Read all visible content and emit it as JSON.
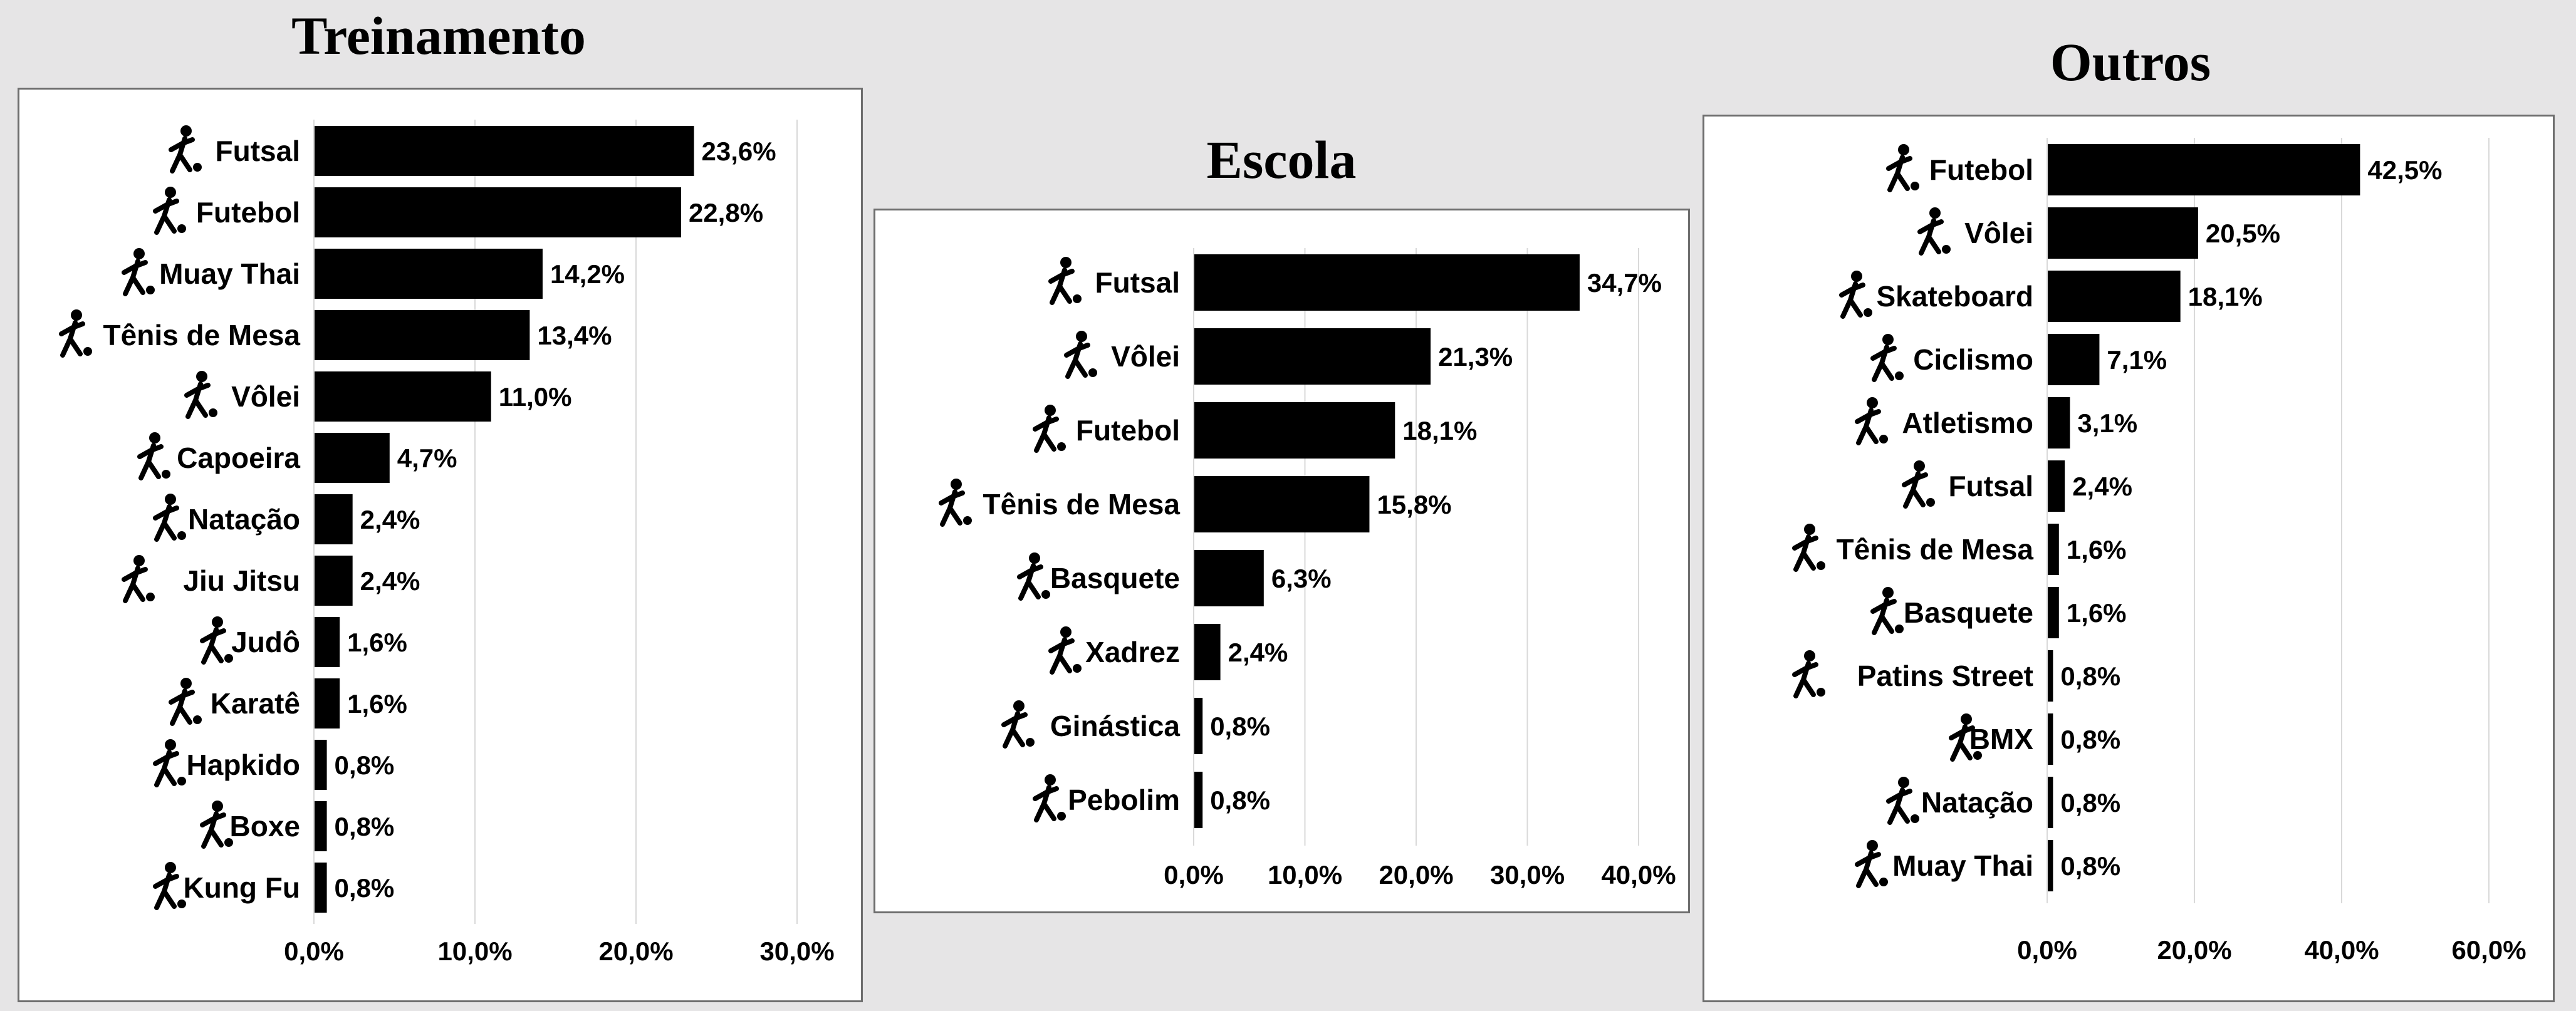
{
  "chart_data": [
    {
      "type": "bar",
      "orientation": "horizontal",
      "title": "Treinamento",
      "categories": [
        "Futsal",
        "Futebol",
        "Muay Thai",
        "Tênis de Mesa",
        "Vôlei",
        "Capoeira",
        "Natação",
        "Jiu Jitsu",
        "Judô",
        "Karatê",
        "Hapkido",
        "Boxe",
        "Kung Fu"
      ],
      "values": [
        23.6,
        22.8,
        14.2,
        13.4,
        11.0,
        4.7,
        2.4,
        2.4,
        1.6,
        1.6,
        0.8,
        0.8,
        0.8
      ],
      "value_labels": [
        "23,6%",
        "22,8%",
        "14,2%",
        "13,4%",
        "11,0%",
        "4,7%",
        "2,4%",
        "2,4%",
        "1,6%",
        "1,6%",
        "0,8%",
        "0,8%",
        "0,8%"
      ],
      "xlim": [
        0,
        30
      ],
      "xticks": [
        0,
        10,
        20,
        30
      ],
      "xtick_labels": [
        "0,0%",
        "10,0%",
        "20,0%",
        "30,0%"
      ],
      "grid": true,
      "bar_color": "#000000",
      "icons": [
        "futsal-player-icon",
        "soccer-kick-icon",
        "muay-thai-kick-icon",
        "table-tennis-icon",
        "volleyball-player-icon",
        "capoeira-icon",
        "swimmer-icon",
        "jiu-jitsu-icon",
        "judo-gi-icon",
        "karate-icon",
        "hapkido-kick-icon",
        "boxer-icon",
        "kung-fu-icon"
      ]
    },
    {
      "type": "bar",
      "orientation": "horizontal",
      "title": "Escola",
      "categories": [
        "Futsal",
        "Vôlei",
        "Futebol",
        "Tênis de Mesa",
        "Basquete",
        "Xadrez",
        "Ginástica",
        "Pebolim"
      ],
      "values": [
        34.7,
        21.3,
        18.1,
        15.8,
        6.3,
        2.4,
        0.8,
        0.8
      ],
      "value_labels": [
        "34,7%",
        "21,3%",
        "18,1%",
        "15,8%",
        "6,3%",
        "2,4%",
        "0,8%",
        "0,8%"
      ],
      "xlim": [
        0,
        40
      ],
      "xticks": [
        0,
        10,
        20,
        30,
        40
      ],
      "xtick_labels": [
        "0,0%",
        "10,0%",
        "20,0%",
        "30,0%",
        "40,0%"
      ],
      "grid": true,
      "bar_color": "#000000",
      "icons": [
        "futsal-player-icon",
        "volleyball-player-icon",
        "soccer-kick-icon",
        "table-tennis-icon",
        "basketball-player-icon",
        "chess-knight-icon",
        "gymnast-icon",
        "foosball-icon"
      ]
    },
    {
      "type": "bar",
      "orientation": "horizontal",
      "title": "Outros",
      "categories": [
        "Futebol",
        "Vôlei",
        "Skateboard",
        "Ciclismo",
        "Atletismo",
        "Futsal",
        "Tênis de Mesa",
        "Basquete",
        "Patins Street",
        "BMX",
        "Natação",
        "Muay Thai"
      ],
      "values": [
        42.5,
        20.5,
        18.1,
        7.1,
        3.1,
        2.4,
        1.6,
        1.6,
        0.8,
        0.8,
        0.8,
        0.8
      ],
      "value_labels": [
        "42,5%",
        "20,5%",
        "18,1%",
        "7,1%",
        "3,1%",
        "2,4%",
        "1,6%",
        "1,6%",
        "0,8%",
        "0,8%",
        "0,8%",
        "0,8%"
      ],
      "xlim": [
        0,
        60
      ],
      "xticks": [
        0,
        20,
        40,
        60
      ],
      "xtick_labels": [
        "0,0%",
        "20,0%",
        "40,0%",
        "60,0%"
      ],
      "grid": true,
      "bar_color": "#000000",
      "icons": [
        "soccer-kick-icon",
        "volleyball-player-icon",
        "skateboarder-icon",
        "cyclist-icon",
        "runner-icon",
        "futsal-player-icon",
        "table-tennis-icon",
        "basketball-player-icon",
        "inline-skater-icon",
        "bmx-rider-icon",
        "swimmer-icon",
        "muay-thai-kick-icon"
      ]
    }
  ]
}
